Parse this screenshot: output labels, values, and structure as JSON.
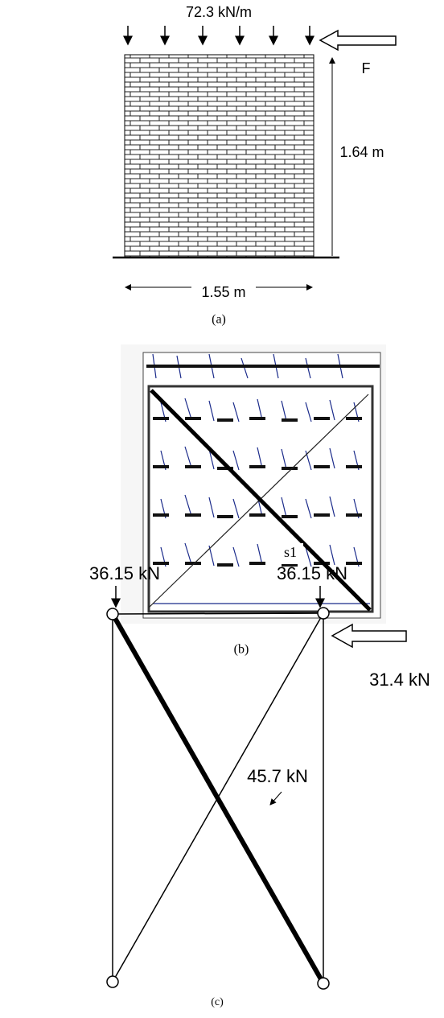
{
  "panel_a": {
    "load": "72.3 kN/m",
    "force": "F",
    "height": "1.64 m",
    "width": "1.55 m",
    "caption": "(a)"
  },
  "panel_b": {
    "strut": "s1",
    "caption": "(b)"
  },
  "panel_c": {
    "left_load": "36.15 kN",
    "right_load": "36.15 kN",
    "horizontal_load": "31.4 kN",
    "strut_force": "45.7 kN",
    "caption": "(c)"
  }
}
